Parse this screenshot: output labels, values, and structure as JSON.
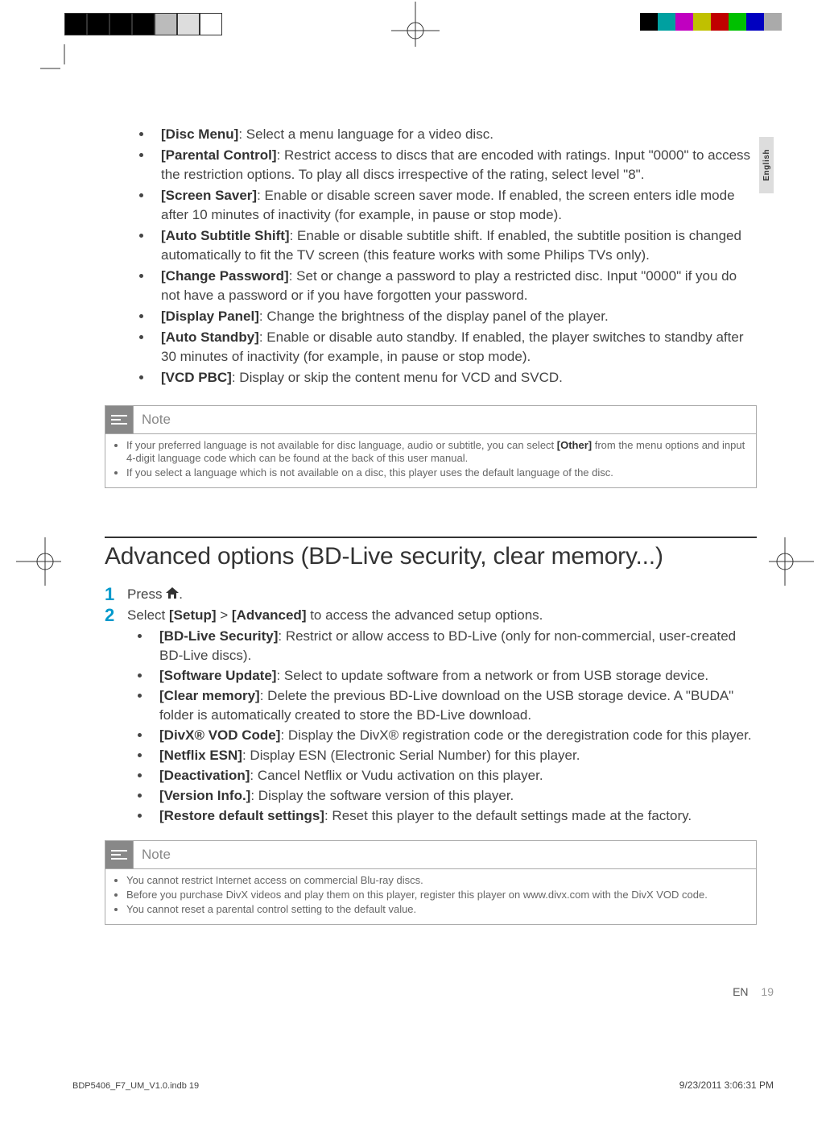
{
  "colors": {
    "text": "#444444",
    "bold_text": "#333333",
    "step_num": "#0099cc",
    "note_icon_bg": "#888888",
    "note_text": "#666666",
    "side_tab_bg": "#dddddd",
    "border": "#aaaaaa",
    "rule": "#333333"
  },
  "typography": {
    "body_fontsize": 17,
    "body_lineheight": 24,
    "section_title_fontsize": 30,
    "step_num_fontsize": 22,
    "note_fontsize": 13,
    "footer_fontsize": 14,
    "slug_fontsize": 11
  },
  "reg_bars_left": [
    "#000000",
    "#000000",
    "#000000",
    "#000000",
    "#bbbbbb",
    "#dddddd",
    "#ffffff"
  ],
  "reg_bars_right": [
    "#000000",
    "#00a0a0",
    "#c000c0",
    "#c0c000",
    "#c00000",
    "#00c000",
    "#0000c0",
    "#aaaaaa"
  ],
  "side_tab": "English",
  "list1": [
    {
      "b": "[Disc Menu]",
      "t": ": Select a menu language for a video disc."
    },
    {
      "b": "[Parental Control]",
      "t": ": Restrict access to discs that are encoded with ratings. Input \"0000\" to access the restriction options. To play all discs irrespective of the rating, select level \"8\"."
    },
    {
      "b": "[Screen Saver]",
      "t": ": Enable or disable screen saver mode. If enabled, the screen enters idle mode after 10 minutes of inactivity (for example, in pause or stop mode)."
    },
    {
      "b": "[Auto Subtitle Shift]",
      "t": ": Enable or disable subtitle shift. If enabled, the subtitle position is changed automatically to fit the TV screen (this feature works with some Philips TVs only)."
    },
    {
      "b": "[Change Password]",
      "t": ": Set or change a password to play a restricted disc. Input \"0000\" if you do not have a password or if you have forgotten your password."
    },
    {
      "b": "[Display Panel]",
      "t": ": Change the brightness of the display panel of the player."
    },
    {
      "b": "[Auto Standby]",
      "t": ": Enable or disable auto standby. If enabled, the player switches to standby after 30 minutes of inactivity (for example, in pause or stop mode)."
    },
    {
      "b": "[VCD PBC]",
      "t": ": Display or skip the content menu for VCD and SVCD."
    }
  ],
  "note1": {
    "title": "Note",
    "items": [
      {
        "pre": "If your preferred language is not available for disc language, audio or subtitle, you can select ",
        "b": "[Other]",
        "post": " from the menu options and input 4-digit language code which can be found at the back of this user manual."
      },
      {
        "pre": "If you select a language which is not available on a disc, this player uses the default language of the disc.",
        "b": "",
        "post": ""
      }
    ]
  },
  "section_title": "Advanced options (BD-Live security, clear memory...)",
  "steps": {
    "s1_num": "1",
    "s1_text_pre": "Press ",
    "s1_text_post": ".",
    "s2_num": "2",
    "s2_pre": "Select ",
    "s2_b1": "[Setup]",
    "s2_mid": " > ",
    "s2_b2": "[Advanced]",
    "s2_post": " to access the advanced setup options."
  },
  "list2": [
    {
      "b": "[BD-Live Security]",
      "t": ": Restrict or allow access to BD-Live (only for non-commercial, user-created BD-Live discs)."
    },
    {
      "b": "[Software Update]",
      "t": ": Select to update software from a network or from USB storage device."
    },
    {
      "b": "[Clear memory]",
      "t": ": Delete the previous BD-Live download on the USB storage device. A \"BUDA\" folder is automatically created to store the BD-Live download."
    },
    {
      "b": "[DivX® VOD Code]",
      "t": ": Display the DivX® registration code or the deregistration code for this player."
    },
    {
      "b": "[Netflix ESN]",
      "t": ": Display ESN (Electronic Serial Number) for this player."
    },
    {
      "b": "[Deactivation]",
      "t": ": Cancel Netflix or Vudu activation on this player."
    },
    {
      "b": "[Version Info.]",
      "t": ": Display the software version of this player."
    },
    {
      "b": "[Restore default settings]",
      "t": ": Reset this player to the default settings made at the factory."
    }
  ],
  "note2": {
    "title": "Note",
    "items": [
      "You cannot restrict Internet access on commercial Blu-ray discs.",
      "Before you purchase DivX videos and play them on this player, register this player on www.divx.com with the DivX VOD code.",
      "You cannot reset a parental control setting to the default value."
    ]
  },
  "footer": {
    "lang": "EN",
    "page": "19"
  },
  "slug_left": "BDP5406_F7_UM_V1.0.indb   19",
  "slug_right": "9/23/2011   3:06:31 PM"
}
